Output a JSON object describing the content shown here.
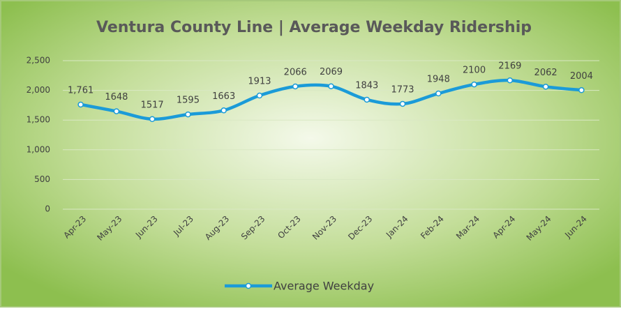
{
  "chart_data": {
    "type": "line",
    "title": "Ventura County Line | Average Weekday Ridership",
    "categories": [
      "Apr-23",
      "May-23",
      "Jun-23",
      "Jul-23",
      "Aug-23",
      "Sep-23",
      "Oct-23",
      "Nov-23",
      "Dec-23",
      "Jan-24",
      "Feb-24",
      "Mar-24",
      "Apr-24",
      "May-24",
      "Jun-24"
    ],
    "series": [
      {
        "name": "Average Weekday",
        "color": "#1b9bd8",
        "values": [
          1761,
          1648,
          1517,
          1595,
          1663,
          1913,
          2066,
          2069,
          1843,
          1773,
          1948,
          2100,
          2169,
          2062,
          2004
        ],
        "value_labels": [
          "1,761",
          "1648",
          "1517",
          "1595",
          "1663",
          "1913",
          "2066",
          "2069",
          "1843",
          "1773",
          "1948",
          "2100",
          "2169",
          "2062",
          "2004"
        ]
      }
    ],
    "ylim": [
      0,
      2500
    ],
    "yticks": [
      0,
      500,
      {
        "value": 1000,
        "label": "1,000"
      },
      {
        "value": 1500,
        "label": "1,500"
      },
      {
        "value": 2000,
        "label": "2,000"
      },
      {
        "value": 2500,
        "label": "2,500"
      }
    ],
    "grid": true,
    "legend": "bottom"
  }
}
